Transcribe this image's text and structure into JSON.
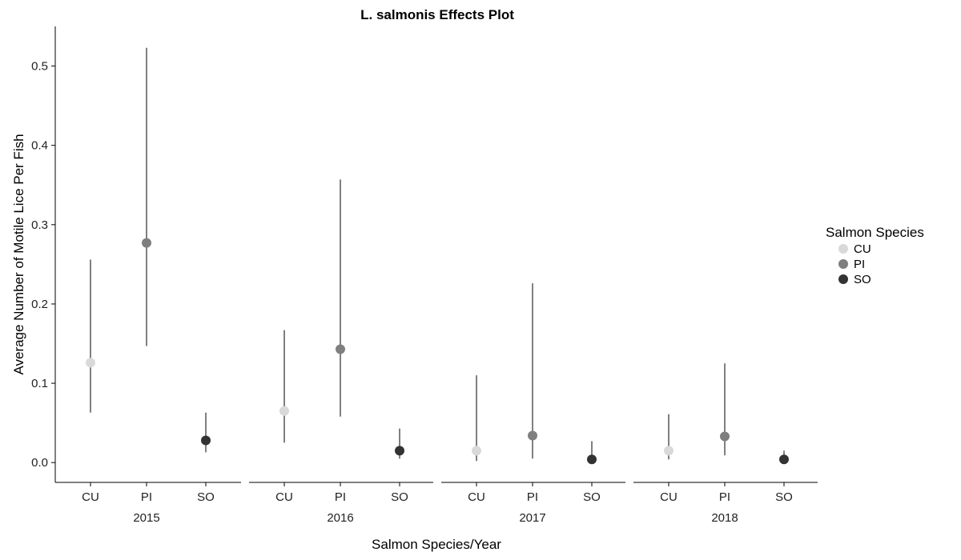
{
  "chart_data": {
    "type": "scatter",
    "title": "L. salmonis Effects Plot",
    "xlabel": "Salmon Species/Year",
    "ylabel": "Average Number of Motile Lice Per Fish",
    "ylim": [
      -0.025,
      0.55
    ],
    "yticks": [
      0.0,
      0.1,
      0.2,
      0.3,
      0.4,
      0.5
    ],
    "ytick_labels": [
      "0.0",
      "0.1",
      "0.2",
      "0.3",
      "0.4",
      "0.5"
    ],
    "grid": false,
    "legend": {
      "title": "Salmon Species",
      "placement": "right",
      "entries": [
        {
          "label": "CU",
          "color": "#d9d9d9"
        },
        {
          "label": "PI",
          "color": "#7f7f7f"
        },
        {
          "label": "SO",
          "color": "#333333"
        }
      ]
    },
    "panels": [
      {
        "year": "2015",
        "points": [
          {
            "species": "CU",
            "value": 0.126,
            "lower": 0.063,
            "upper": 0.256
          },
          {
            "species": "PI",
            "value": 0.277,
            "lower": 0.147,
            "upper": 0.523
          },
          {
            "species": "SO",
            "value": 0.028,
            "lower": 0.013,
            "upper": 0.063
          }
        ]
      },
      {
        "year": "2016",
        "points": [
          {
            "species": "CU",
            "value": 0.065,
            "lower": 0.025,
            "upper": 0.167
          },
          {
            "species": "PI",
            "value": 0.143,
            "lower": 0.058,
            "upper": 0.357
          },
          {
            "species": "SO",
            "value": 0.015,
            "lower": 0.005,
            "upper": 0.043
          }
        ]
      },
      {
        "year": "2017",
        "points": [
          {
            "species": "CU",
            "value": 0.015,
            "lower": 0.002,
            "upper": 0.11
          },
          {
            "species": "PI",
            "value": 0.034,
            "lower": 0.005,
            "upper": 0.226
          },
          {
            "species": "SO",
            "value": 0.004,
            "lower": 0.001,
            "upper": 0.027
          }
        ]
      },
      {
        "year": "2018",
        "points": [
          {
            "species": "CU",
            "value": 0.015,
            "lower": 0.004,
            "upper": 0.061
          },
          {
            "species": "PI",
            "value": 0.033,
            "lower": 0.009,
            "upper": 0.125
          },
          {
            "species": "SO",
            "value": 0.004,
            "lower": 0.001,
            "upper": 0.015
          }
        ]
      }
    ]
  }
}
